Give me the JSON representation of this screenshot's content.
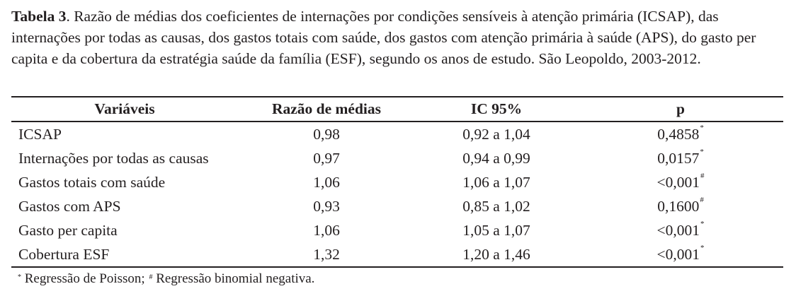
{
  "caption": {
    "label": "Tabela 3",
    "text": ". Razão de médias dos coeficientes de internações por condições sensíveis à atenção primária (ICSAP), das internações por todas as causas, dos gastos totais com saúde, dos gastos com atenção primária à saúde (APS), do gasto per capita e da cobertura da estratégia saúde da família (ESF), segundo os anos de estudo. São Leopoldo, 2003-2012."
  },
  "table": {
    "headers": [
      "Variáveis",
      "Razão de médias",
      "IC 95%",
      "p"
    ],
    "rows": [
      {
        "variable": "ICSAP",
        "ratio": "0,98",
        "ci": "0,92 a 1,04",
        "p": "0,4858",
        "p_mark": "*"
      },
      {
        "variable": "Internações por todas as causas",
        "ratio": "0,97",
        "ci": "0,94 a 0,99",
        "p": "0,0157",
        "p_mark": "*"
      },
      {
        "variable": "Gastos totais com saúde",
        "ratio": "1,06",
        "ci": "1,06 a 1,07",
        "p": "<0,001",
        "p_mark": "#"
      },
      {
        "variable": "Gastos com APS",
        "ratio": "0,93",
        "ci": "0,85 a 1,02",
        "p": "0,1600",
        "p_mark": "#"
      },
      {
        "variable": "Gasto per capita",
        "ratio": "1,06",
        "ci": "1,05 a 1,07",
        "p": "<0,001",
        "p_mark": "*"
      },
      {
        "variable": "Cobertura ESF",
        "ratio": "1,32",
        "ci": "1,20 a 1,46",
        "p": "<0,001",
        "p_mark": "*"
      }
    ]
  },
  "footnote": {
    "mark1": "*",
    "text1": " Regressão de Poisson; ",
    "mark2": "#",
    "text2": " Regressão binomial negativa."
  }
}
